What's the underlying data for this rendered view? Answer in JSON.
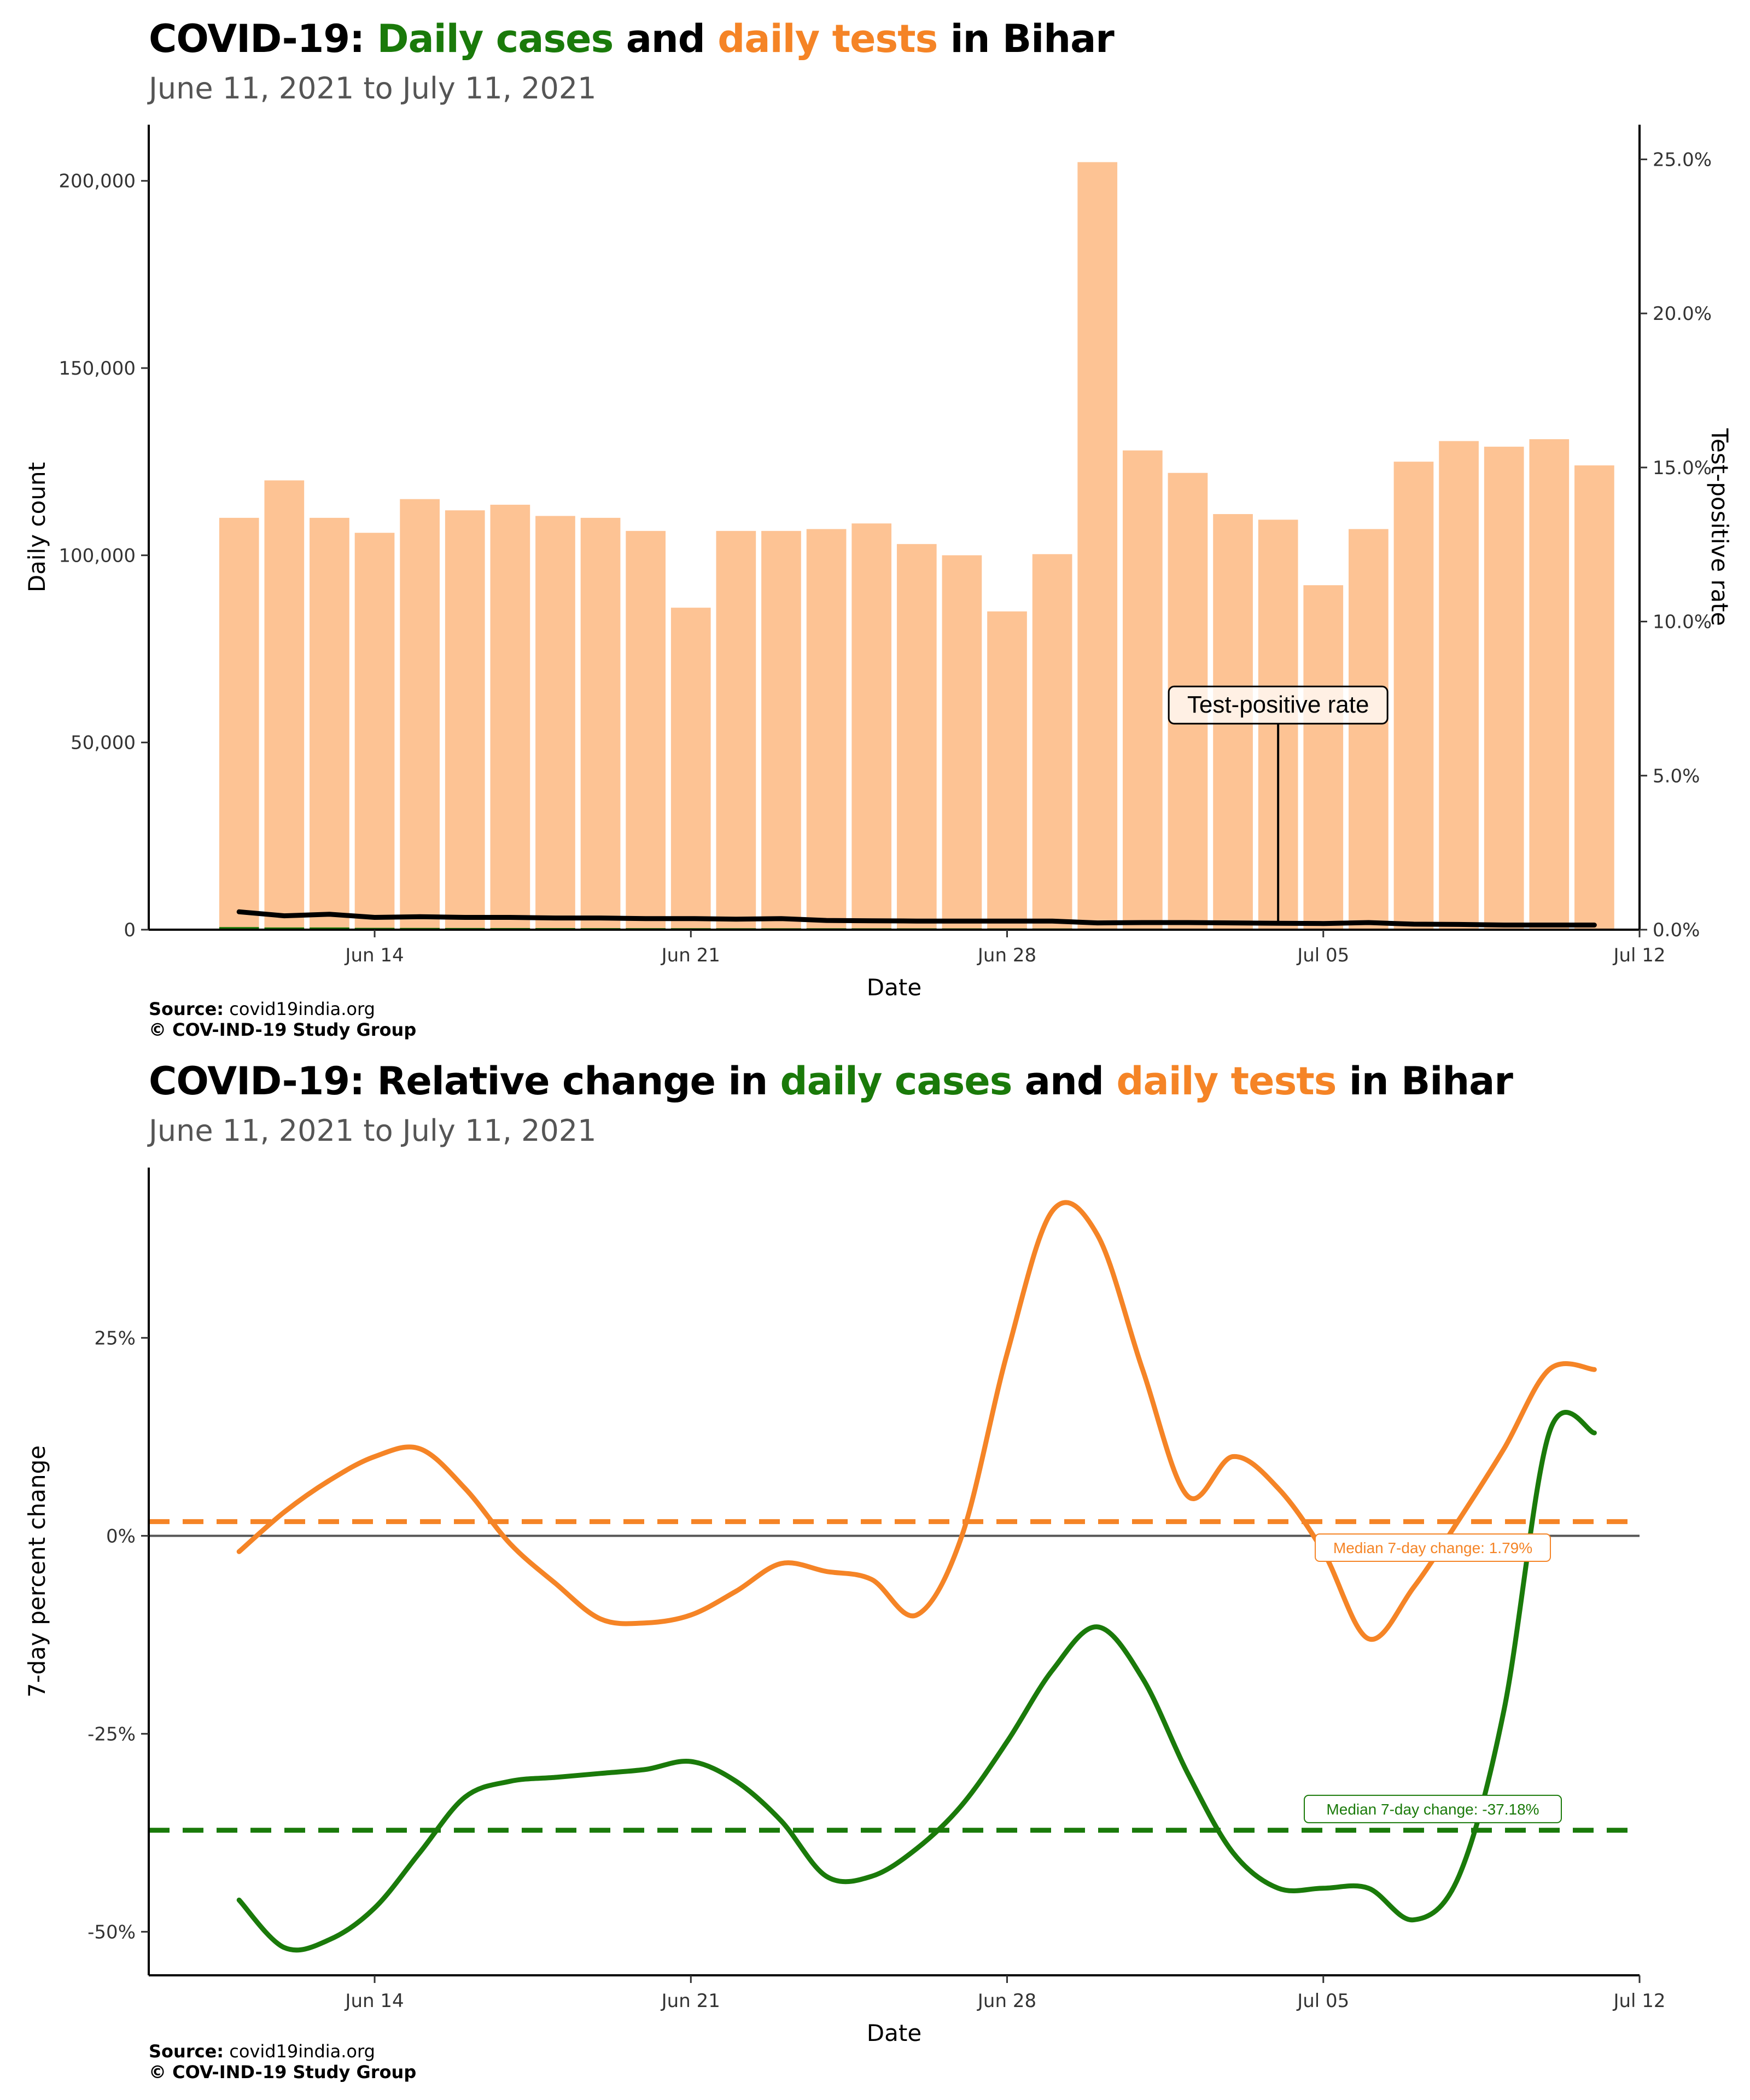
{
  "charts": [
    {
      "title_prefix": "COVID-19: ",
      "title_green": "Daily cases",
      "title_mid": " and ",
      "title_orange": "daily tests",
      "title_suffix": " in Bihar",
      "subtitle": "June 11, 2021 to July 11, 2021",
      "source_label": "Source:",
      "source_value": " covid19india.org",
      "copyright": "© COV-IND-19 Study Group"
    },
    {
      "title_prefix": "COVID-19: Relative change in ",
      "title_green": "daily cases",
      "title_mid": " and ",
      "title_orange": "daily tests",
      "title_suffix": " in Bihar",
      "subtitle": "June 11, 2021 to July 11, 2021",
      "source_label": "Source:",
      "source_value": " covid19india.org",
      "copyright": "© COV-IND-19 Study Group"
    }
  ],
  "colors": {
    "green": "#1a7a0a",
    "orange": "#f58426",
    "bar": "#fdc394",
    "line": "#000000"
  },
  "chart_data": [
    {
      "type": "bar",
      "x": [
        "2021-06-11",
        "2021-06-12",
        "2021-06-13",
        "2021-06-14",
        "2021-06-15",
        "2021-06-16",
        "2021-06-17",
        "2021-06-18",
        "2021-06-19",
        "2021-06-20",
        "2021-06-21",
        "2021-06-22",
        "2021-06-23",
        "2021-06-24",
        "2021-06-25",
        "2021-06-26",
        "2021-06-27",
        "2021-06-28",
        "2021-06-29",
        "2021-06-30",
        "2021-07-01",
        "2021-07-02",
        "2021-07-03",
        "2021-07-04",
        "2021-07-05",
        "2021-07-06",
        "2021-07-07",
        "2021-07-08",
        "2021-07-09",
        "2021-07-10",
        "2021-07-11"
      ],
      "xlim": [
        "2021-06-09",
        "2021-07-12"
      ],
      "x_ticks": [
        "Jun 14",
        "Jun 21",
        "Jun 28",
        "Jul 05",
        "Jul 12"
      ],
      "x_tick_dates": [
        "2021-06-14",
        "2021-06-21",
        "2021-06-28",
        "2021-07-05",
        "2021-07-12"
      ],
      "series": [
        {
          "name": "daily tests",
          "values": [
            110000,
            120000,
            110000,
            106000,
            115000,
            112000,
            113500,
            110500,
            110000,
            106500,
            86000,
            106500,
            106500,
            107000,
            108500,
            103000,
            100000,
            85000,
            100300,
            205000,
            128000,
            122000,
            111000,
            109500,
            92000,
            107000,
            125000,
            130500,
            129000,
            131000,
            124000
          ]
        },
        {
          "name": "Daily cases",
          "values": [
            700,
            600,
            600,
            500,
            480,
            460,
            450,
            440,
            420,
            410,
            400,
            390,
            380,
            380,
            370,
            360,
            350,
            340,
            330,
            300,
            300,
            290,
            280,
            270,
            260,
            250,
            240,
            230,
            220,
            210,
            210
          ]
        },
        {
          "name": "Test-positive rate",
          "axis": "right",
          "values": [
            0.58,
            0.45,
            0.5,
            0.4,
            0.42,
            0.4,
            0.4,
            0.38,
            0.38,
            0.36,
            0.36,
            0.34,
            0.36,
            0.3,
            0.29,
            0.28,
            0.28,
            0.28,
            0.28,
            0.22,
            0.23,
            0.23,
            0.22,
            0.21,
            0.2,
            0.23,
            0.18,
            0.17,
            0.15,
            0.15,
            0.15
          ]
        }
      ],
      "xlabel": "Date",
      "ylabel": "Daily count",
      "ylim": [
        0,
        215000
      ],
      "y_ticks": [
        0,
        50000,
        100000,
        150000,
        200000
      ],
      "y_tick_labels": [
        "0",
        "50,000",
        "100,000",
        "150,000",
        "200,000"
      ],
      "ylabel_right": "Test-positive rate",
      "ylim_right": [
        0,
        26.125
      ],
      "y_ticks_right": [
        0,
        5,
        10,
        15,
        20,
        25
      ],
      "y_tick_labels_right": [
        "0.0%",
        "5.0%",
        "10.0%",
        "15.0%",
        "20.0%",
        "25.0%"
      ],
      "annotation": {
        "text": "Test-positive rate",
        "x": "2021-07-04",
        "y_value": 60000
      },
      "grid": false
    },
    {
      "type": "line",
      "x": [
        "2021-06-11",
        "2021-06-12",
        "2021-06-13",
        "2021-06-14",
        "2021-06-15",
        "2021-06-16",
        "2021-06-17",
        "2021-06-18",
        "2021-06-19",
        "2021-06-20",
        "2021-06-21",
        "2021-06-22",
        "2021-06-23",
        "2021-06-24",
        "2021-06-25",
        "2021-06-26",
        "2021-06-27",
        "2021-06-28",
        "2021-06-29",
        "2021-06-30",
        "2021-07-01",
        "2021-07-02",
        "2021-07-03",
        "2021-07-04",
        "2021-07-05",
        "2021-07-06",
        "2021-07-07",
        "2021-07-08",
        "2021-07-09",
        "2021-07-10",
        "2021-07-11"
      ],
      "xlim": [
        "2021-06-09",
        "2021-07-12"
      ],
      "x_ticks": [
        "Jun 14",
        "Jun 21",
        "Jun 28",
        "Jul 05",
        "Jul 12"
      ],
      "x_tick_dates": [
        "2021-06-14",
        "2021-06-21",
        "2021-06-28",
        "2021-07-05",
        "2021-07-12"
      ],
      "series": [
        {
          "name": "daily tests",
          "values": [
            -2,
            3,
            7,
            10,
            11,
            6,
            -1,
            -6,
            -10.5,
            -11,
            -10,
            -7,
            -3.5,
            -4.5,
            -5.5,
            -10,
            0,
            23,
            41,
            38,
            21,
            5,
            10,
            6,
            -2,
            -13,
            -6.5,
            2,
            11,
            21,
            21
          ]
        },
        {
          "name": "daily cases",
          "values": [
            -46,
            -52,
            -51,
            -47,
            -40,
            -33,
            -31,
            -30.5,
            -30,
            -29.5,
            -28.5,
            -31,
            -36,
            -43,
            -43,
            -39.5,
            -34,
            -26,
            -17,
            -11.5,
            -18,
            -30,
            -40,
            -44.5,
            -44.5,
            -44.5,
            -48.5,
            -43,
            -22,
            13,
            13
          ]
        }
      ],
      "median_lines": [
        {
          "series": "daily tests",
          "value": 1.79,
          "label": "Median 7-day change: 1.79%"
        },
        {
          "series": "daily cases",
          "value": -37.18,
          "label": "Median 7-day change: -37.18%"
        }
      ],
      "xlabel": "Date",
      "ylabel": "7-day percent change",
      "ylim": [
        -55.5,
        46.5
      ],
      "y_ticks": [
        -50,
        -25,
        0,
        25
      ],
      "y_tick_labels": [
        "-50%",
        "-25%",
        "0%",
        "25%"
      ],
      "grid": false
    }
  ]
}
